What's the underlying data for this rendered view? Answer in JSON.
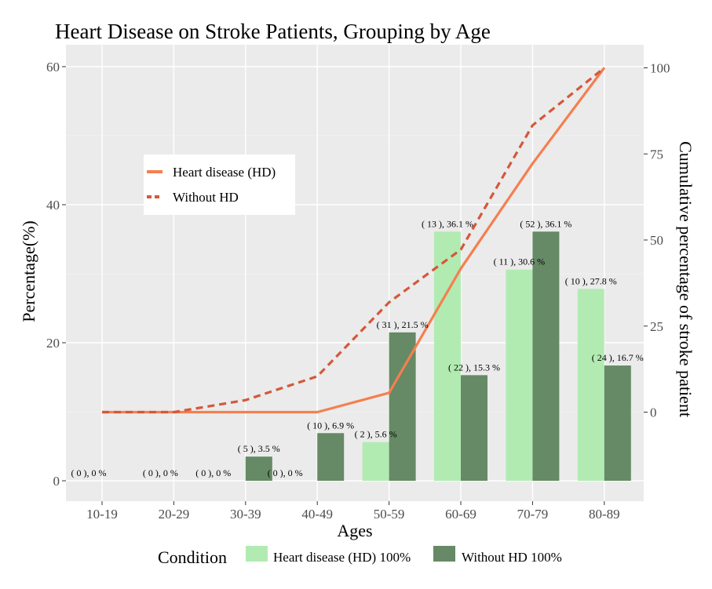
{
  "chart_data": {
    "type": "bar",
    "title": "Heart Disease on Stroke Patients, Grouping by Age",
    "xlabel": "Ages",
    "ylabel": "Percentage(%)",
    "y2label": "Cumulative percentage of stroke patient",
    "categories": [
      "10-19",
      "20-29",
      "30-39",
      "40-49",
      "50-59",
      "60-69",
      "70-79",
      "80-89"
    ],
    "ylim": [
      0,
      60
    ],
    "y_ticks": [
      0,
      20,
      40,
      60
    ],
    "y2lim": [
      0,
      100
    ],
    "y2_ticks": [
      0,
      25,
      50,
      75,
      100
    ],
    "grid": true,
    "series": [
      {
        "name": "Heart disease (HD) 100%",
        "color": "#b2ebb2",
        "values": [
          0,
          0,
          0,
          0,
          5.6,
          36.1,
          30.6,
          27.8
        ],
        "labels": [
          "( 0 ), 0 %",
          "( 0 ), 0 %",
          "( 0 ), 0 %",
          "( 0 ), 0 %",
          "( 2 ), 5.6 %",
          "( 13 ), 36.1 %",
          "( 11 ), 30.6 %",
          "( 10 ), 27.8 %"
        ]
      },
      {
        "name": "Without HD 100%",
        "color": "#658a65",
        "values": [
          0,
          0,
          3.5,
          6.9,
          21.5,
          15.3,
          36.1,
          16.7
        ],
        "labels": [
          "",
          "",
          "( 5 ), 3.5 %",
          "( 10 ), 6.9 %",
          "( 31 ), 21.5 %",
          "( 22 ), 15.3 %",
          "( 52 ), 36.1 %",
          "( 24 ), 16.7 %"
        ]
      }
    ],
    "lines": [
      {
        "name": "Heart disease (HD)",
        "color": "#f57f4f",
        "style": "solid",
        "values": [
          0,
          0,
          0,
          0,
          5.6,
          41.7,
          72.2,
          100
        ]
      },
      {
        "name": "Without HD",
        "color": "#d4583a",
        "style": "dashed",
        "values": [
          0,
          0,
          3.5,
          10.4,
          31.9,
          47.2,
          83.3,
          100
        ]
      }
    ],
    "bar_legend_title": "Condition",
    "line_legend_placement": "top-left"
  }
}
